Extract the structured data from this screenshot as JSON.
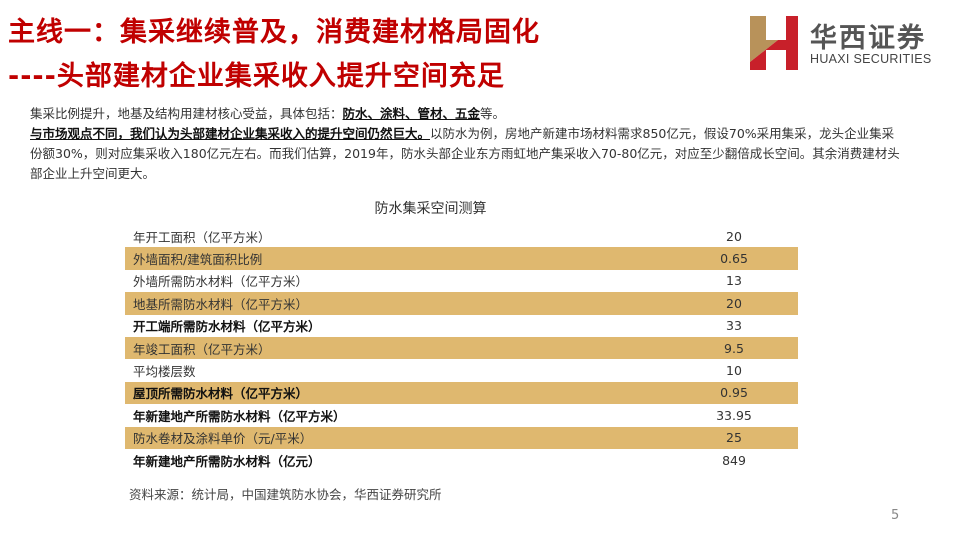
{
  "title": {
    "line1": "主线一：集采继续普及，消费建材格局固化",
    "line2": "----头部建材企业集采收入提升空间充足"
  },
  "logo": {
    "cn": "华西证券",
    "en": "HUAXI SECURITIES",
    "colors": {
      "gold": "#b8925a",
      "red": "#c8202a"
    }
  },
  "paragraph": {
    "s1": "集采比例提升，地基及结构用建材核心受益，具体包括：",
    "s1b": "防水、涂料、管材、五金",
    "s1c": "等。",
    "s2b": "与市场观点不同，我们认为头部建材企业集采收入的提升空间仍然巨大。",
    "s2": "以防水为例，房地产新建市场材料需求850亿元，假设70%采用集采，龙头企业集采份额30%，则对应集采收入180亿元左右。而我们估算，2019年，防水头部企业东方雨虹地产集采收入70-80亿元，对应至少翻倍成长空间。其余消费建材头部企业上升空间更大。"
  },
  "table": {
    "caption": "防水集采空间测算",
    "rows": [
      {
        "label": "年开工面积（亿平方米）",
        "value": "20",
        "shaded": false,
        "bold": false
      },
      {
        "label": "外墙面积/建筑面积比例",
        "value": "0.65",
        "shaded": true,
        "bold": false
      },
      {
        "label": "外墙所需防水材料（亿平方米）",
        "value": "13",
        "shaded": false,
        "bold": false
      },
      {
        "label": "地基所需防水材料（亿平方米）",
        "value": "20",
        "shaded": true,
        "bold": false
      },
      {
        "label": "开工端所需防水材料（亿平方米）",
        "value": "33",
        "shaded": false,
        "bold": true
      },
      {
        "label": "年竣工面积（亿平方米）",
        "value": "9.5",
        "shaded": true,
        "bold": false
      },
      {
        "label": "平均楼层数",
        "value": "10",
        "shaded": false,
        "bold": false
      },
      {
        "label": "屋顶所需防水材料（亿平方米）",
        "value": "0.95",
        "shaded": true,
        "bold": true
      },
      {
        "label": "年新建地产所需防水材料（亿平方米）",
        "value": "33.95",
        "shaded": false,
        "bold": true
      },
      {
        "label": "防水卷材及涂料单价（元/平米）",
        "value": "25",
        "shaded": true,
        "bold": false
      },
      {
        "label": "年新建地产所需防水材料（亿元）",
        "value": "849",
        "shaded": false,
        "bold": true
      }
    ],
    "shade_color": "#dfb86f"
  },
  "source": "资料来源：统计局，中国建筑防水协会，华西证券研究所",
  "page_number": "5"
}
